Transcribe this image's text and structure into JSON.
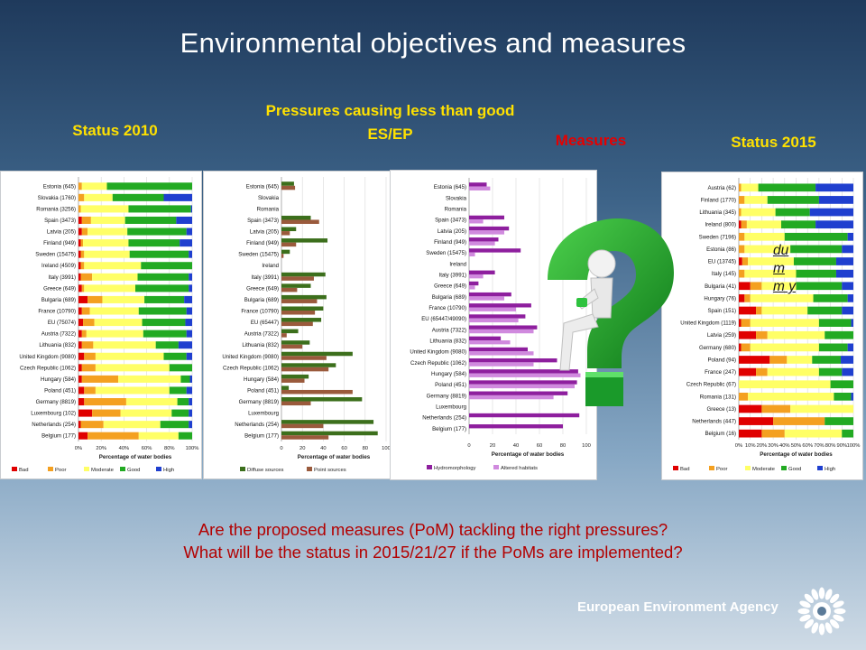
{
  "slide": {
    "title": "Environmental objectives and measures",
    "question_line1": "Are the proposed measures (PoM) tackling the right pressures?",
    "question_line2": "What will be the status in 2015/21/27 if the PoMs are implemented?",
    "agency": "European Environment Agency",
    "dummy_text": "du m m y",
    "colors": {
      "header_yellow": "#ffe100",
      "header_red": "#e60000",
      "question_red": "#b30000"
    }
  },
  "headers": {
    "status_2010": "Status 2010",
    "pressures": "Pressures causing less than good ES/EP",
    "measures": "Measures",
    "status_2015": "Status 2015"
  },
  "chart_data": [
    {
      "type": "bar",
      "stacked": true,
      "orientation": "horizontal",
      "title": "",
      "xlabel": "Percentage of water bodies",
      "xlim": [
        0,
        100
      ],
      "x_ticks": [
        "0%",
        "20%",
        "40%",
        "60%",
        "80%",
        "100%"
      ],
      "legend": "bottom",
      "colors": [
        "#e00000",
        "#f4a020",
        "#ffff66",
        "#22aa22",
        "#1f3fcf"
      ],
      "categories": [
        "Estonia (645)",
        "Slovakia (1760)",
        "Romania (3256)",
        "Spain (3473)",
        "Latvia (205)",
        "Finland (949)",
        "Sweden (15475)",
        "Ireland (4509)",
        "Italy (3991)",
        "Greece (649)",
        "Bulgaria (689)",
        "France (10790)",
        "EU (75074)",
        "Austria (7322)",
        "Lithuania (832)",
        "United Kingdom (9080)",
        "Czech Republic (1062)",
        "Hungary (584)",
        "Poland (451)",
        "Germany (8819)",
        "Luxembourg (102)",
        "Netherlands (254)",
        "Belgium (177)"
      ],
      "series": [
        {
          "name": "Bad",
          "values": [
            0,
            0,
            0,
            3,
            3,
            2,
            2,
            2,
            2,
            3,
            8,
            3,
            4,
            3,
            3,
            5,
            3,
            3,
            5,
            5,
            12,
            2,
            8
          ]
        },
        {
          "name": "Poor",
          "values": [
            3,
            5,
            2,
            8,
            5,
            2,
            3,
            3,
            10,
            2,
            13,
            7,
            10,
            4,
            10,
            10,
            12,
            32,
            10,
            37,
            25,
            20,
            45
          ]
        },
        {
          "name": "Moderate",
          "values": [
            22,
            25,
            42,
            30,
            35,
            40,
            40,
            50,
            40,
            45,
            37,
            43,
            42,
            50,
            55,
            60,
            65,
            55,
            65,
            45,
            45,
            50,
            35
          ]
        },
        {
          "name": "Good",
          "values": [
            75,
            45,
            55,
            45,
            52,
            45,
            52,
            45,
            45,
            47,
            35,
            42,
            38,
            38,
            20,
            20,
            20,
            8,
            15,
            10,
            15,
            25,
            12
          ]
        },
        {
          "name": "High",
          "values": [
            0,
            25,
            1,
            14,
            5,
            11,
            3,
            0,
            3,
            3,
            7,
            5,
            6,
            5,
            12,
            5,
            0,
            2,
            5,
            3,
            3,
            3,
            0
          ]
        }
      ]
    },
    {
      "type": "bar",
      "orientation": "horizontal",
      "title": "",
      "xlabel": "Percentage of water bodies",
      "xlim": [
        0,
        100
      ],
      "x_ticks": [
        "0",
        "20",
        "40",
        "60",
        "80",
        "100"
      ],
      "legend": "bottom",
      "colors": [
        "#3c6f1c",
        "#9a5a3c"
      ],
      "categories": [
        "Estonia (645)",
        "Slovakia",
        "Romania",
        "Spain (3473)",
        "Latvia (205)",
        "Finland (949)",
        "Sweden (15475)",
        "Ireland",
        "Italy (3991)",
        "Greece (649)",
        "Bulgaria (689)",
        "France (10790)",
        "EU (65447)",
        "Austria (7322)",
        "Lithuania (832)",
        "United Kingdom (9080)",
        "Czech Republic (1062)",
        "Hungary (584)",
        "Poland (451)",
        "Germany (8819)",
        "Luxembourg",
        "Netherlands (254)",
        "Belgium (177)"
      ],
      "series": [
        {
          "name": "Diffuse sources",
          "values": [
            12,
            0,
            0,
            28,
            14,
            44,
            8,
            0,
            42,
            28,
            43,
            40,
            38,
            16,
            27,
            68,
            52,
            26,
            7,
            77,
            0,
            88,
            92
          ]
        },
        {
          "name": "Point sources",
          "values": [
            13,
            0,
            0,
            36,
            8,
            14,
            2,
            0,
            31,
            15,
            34,
            32,
            30,
            5,
            20,
            43,
            45,
            22,
            68,
            28,
            0,
            40,
            45
          ]
        }
      ]
    },
    {
      "type": "bar",
      "orientation": "horizontal",
      "title": "",
      "xlabel": "Percentage of water bodies",
      "xlim": [
        0,
        100
      ],
      "x_ticks": [
        "0",
        "20",
        "40",
        "60",
        "80",
        "100"
      ],
      "legend": "bottom",
      "colors": [
        "#8e1f9e",
        "#d08ade"
      ],
      "categories": [
        "Estonia (645)",
        "Slovakia",
        "Romania",
        "Spain (3473)",
        "Latvia (205)",
        "Finland (949)",
        "Sweden (15475)",
        "Ireland",
        "Italy (3991)",
        "Greece (649)",
        "Bulgaria (689)",
        "France (10790)",
        "EU (65447/49090)",
        "Austria (7322)",
        "Lithuania (832)",
        "United Kingdom (9080)",
        "Czech Republic (1062)",
        "Hungary (584)",
        "Poland (451)",
        "Germany (8819)",
        "Luxembourg",
        "Netherlands (254)",
        "Belgium (177)"
      ],
      "series": [
        {
          "name": "Hydromorphology",
          "values": [
            15,
            0,
            0,
            30,
            34,
            25,
            44,
            0,
            22,
            8,
            36,
            53,
            48,
            58,
            27,
            50,
            75,
            93,
            92,
            84,
            0,
            94,
            80
          ]
        },
        {
          "name": "Altered habitats",
          "values": [
            18,
            0,
            0,
            12,
            30,
            22,
            5,
            0,
            12,
            5,
            30,
            40,
            42,
            55,
            35,
            55,
            55,
            95,
            90,
            72,
            0,
            0,
            0
          ]
        }
      ]
    },
    {
      "type": "bar",
      "stacked": true,
      "orientation": "horizontal",
      "title": "",
      "xlabel": "Percentage of water bodies",
      "xlim": [
        0,
        100
      ],
      "x_ticks": [
        "0%",
        "10%",
        "20%",
        "30%",
        "40%",
        "50%",
        "60%",
        "70%",
        "80%",
        "90%",
        "100%"
      ],
      "legend": "bottom",
      "colors": [
        "#e00000",
        "#f4a020",
        "#ffff66",
        "#22aa22",
        "#1f3fcf"
      ],
      "categories": [
        "Austria (62)",
        "Finland (1770)",
        "Lithuania (345)",
        "Ireland (800)",
        "Sweden (7196)",
        "Estonia (86)",
        "EU (13745)",
        "Italy (145)",
        "Bulgaria (41)",
        "Hungary (76)",
        "Spain (151)",
        "United Kingdom (1119)",
        "Latvia (259)",
        "Germany (680)",
        "Poland (94)",
        "France (247)",
        "Czech Republic (67)",
        "Romania (131)",
        "Greece (13)",
        "Netherlands (447)",
        "Belgium (16)"
      ],
      "series": [
        {
          "name": "Bad",
          "values": [
            0,
            0,
            0,
            2,
            0,
            0,
            3,
            0,
            10,
            5,
            15,
            2,
            15,
            2,
            27,
            15,
            0,
            0,
            20,
            30,
            20
          ]
        },
        {
          "name": "Poor",
          "values": [
            2,
            5,
            2,
            5,
            5,
            5,
            5,
            5,
            10,
            5,
            5,
            8,
            10,
            8,
            15,
            10,
            0,
            8,
            25,
            45,
            20
          ]
        },
        {
          "name": "Moderate",
          "values": [
            15,
            20,
            30,
            30,
            35,
            40,
            40,
            45,
            30,
            55,
            40,
            60,
            50,
            60,
            22,
            45,
            80,
            75,
            55,
            0,
            50
          ]
        },
        {
          "name": "Good",
          "values": [
            50,
            45,
            30,
            30,
            55,
            45,
            37,
            35,
            40,
            30,
            30,
            28,
            25,
            25,
            25,
            20,
            20,
            15,
            0,
            25,
            10
          ]
        },
        {
          "name": "High",
          "values": [
            33,
            30,
            38,
            33,
            5,
            10,
            15,
            15,
            10,
            5,
            10,
            2,
            0,
            5,
            11,
            10,
            0,
            2,
            0,
            0,
            0
          ]
        }
      ]
    }
  ]
}
